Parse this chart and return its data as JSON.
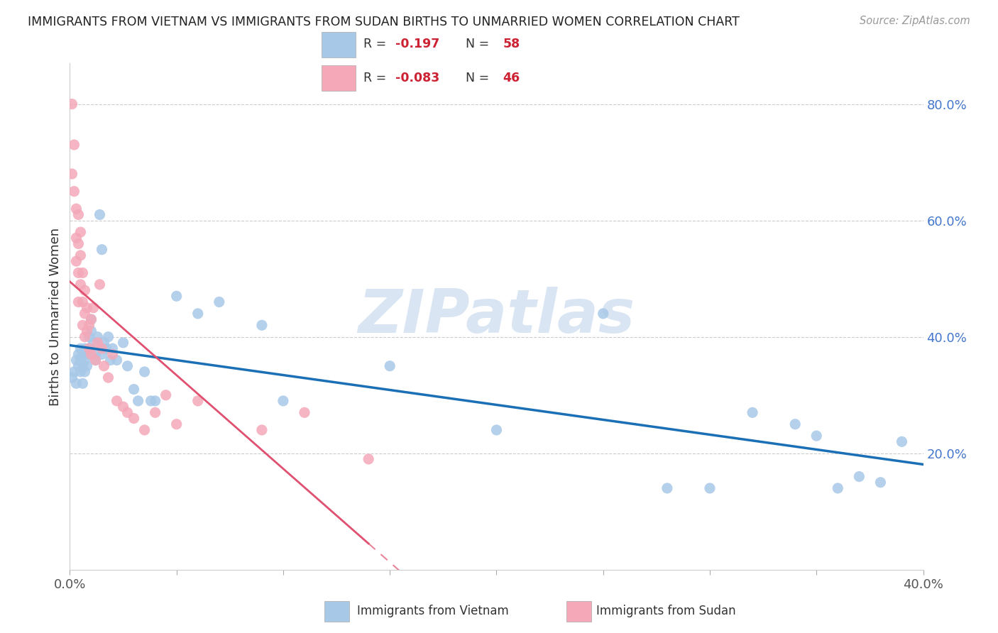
{
  "title": "IMMIGRANTS FROM VIETNAM VS IMMIGRANTS FROM SUDAN BIRTHS TO UNMARRIED WOMEN CORRELATION CHART",
  "source": "Source: ZipAtlas.com",
  "ylabel": "Births to Unmarried Women",
  "x_min": 0.0,
  "x_max": 0.4,
  "y_min": 0.0,
  "y_max": 0.87,
  "vietnam_color": "#a8c8e8",
  "sudan_color": "#f4a8b8",
  "vietnam_line_color": "#1a6fb5",
  "sudan_line_color": "#e05070",
  "watermark": "ZIPatlas",
  "watermark_color": "#c0d4ea",
  "grid_color": "#cccccc",
  "background_color": "#ffffff",
  "vietnam_x": [
    0.001,
    0.002,
    0.003,
    0.003,
    0.004,
    0.004,
    0.005,
    0.005,
    0.005,
    0.006,
    0.006,
    0.006,
    0.007,
    0.007,
    0.007,
    0.008,
    0.008,
    0.009,
    0.009,
    0.01,
    0.01,
    0.011,
    0.012,
    0.012,
    0.013,
    0.014,
    0.015,
    0.015,
    0.016,
    0.017,
    0.018,
    0.019,
    0.02,
    0.022,
    0.025,
    0.027,
    0.03,
    0.032,
    0.035,
    0.038,
    0.04,
    0.05,
    0.06,
    0.07,
    0.09,
    0.1,
    0.15,
    0.2,
    0.25,
    0.28,
    0.3,
    0.32,
    0.34,
    0.35,
    0.36,
    0.37,
    0.38,
    0.39
  ],
  "vietnam_y": [
    0.33,
    0.34,
    0.36,
    0.32,
    0.35,
    0.37,
    0.36,
    0.34,
    0.38,
    0.35,
    0.37,
    0.32,
    0.36,
    0.34,
    0.38,
    0.37,
    0.35,
    0.4,
    0.38,
    0.41,
    0.43,
    0.39,
    0.37,
    0.36,
    0.4,
    0.61,
    0.55,
    0.37,
    0.39,
    0.38,
    0.4,
    0.36,
    0.38,
    0.36,
    0.39,
    0.35,
    0.31,
    0.29,
    0.34,
    0.29,
    0.29,
    0.47,
    0.44,
    0.46,
    0.42,
    0.29,
    0.35,
    0.24,
    0.44,
    0.14,
    0.14,
    0.27,
    0.25,
    0.23,
    0.14,
    0.16,
    0.15,
    0.22
  ],
  "sudan_x": [
    0.001,
    0.001,
    0.002,
    0.002,
    0.003,
    0.003,
    0.003,
    0.004,
    0.004,
    0.004,
    0.004,
    0.005,
    0.005,
    0.005,
    0.006,
    0.006,
    0.006,
    0.007,
    0.007,
    0.007,
    0.008,
    0.008,
    0.009,
    0.009,
    0.01,
    0.01,
    0.011,
    0.012,
    0.013,
    0.014,
    0.015,
    0.016,
    0.018,
    0.02,
    0.022,
    0.025,
    0.027,
    0.03,
    0.035,
    0.04,
    0.045,
    0.05,
    0.06,
    0.09,
    0.11,
    0.14
  ],
  "sudan_y": [
    0.8,
    0.68,
    0.73,
    0.65,
    0.62,
    0.57,
    0.53,
    0.61,
    0.56,
    0.51,
    0.46,
    0.58,
    0.54,
    0.49,
    0.51,
    0.46,
    0.42,
    0.48,
    0.44,
    0.4,
    0.45,
    0.41,
    0.42,
    0.38,
    0.43,
    0.37,
    0.45,
    0.36,
    0.39,
    0.49,
    0.38,
    0.35,
    0.33,
    0.37,
    0.29,
    0.28,
    0.27,
    0.26,
    0.24,
    0.27,
    0.3,
    0.25,
    0.29,
    0.24,
    0.27,
    0.19
  ],
  "legend_r_vietnam": "-0.197",
  "legend_n_vietnam": "58",
  "legend_r_sudan": "-0.083",
  "legend_n_sudan": "46"
}
